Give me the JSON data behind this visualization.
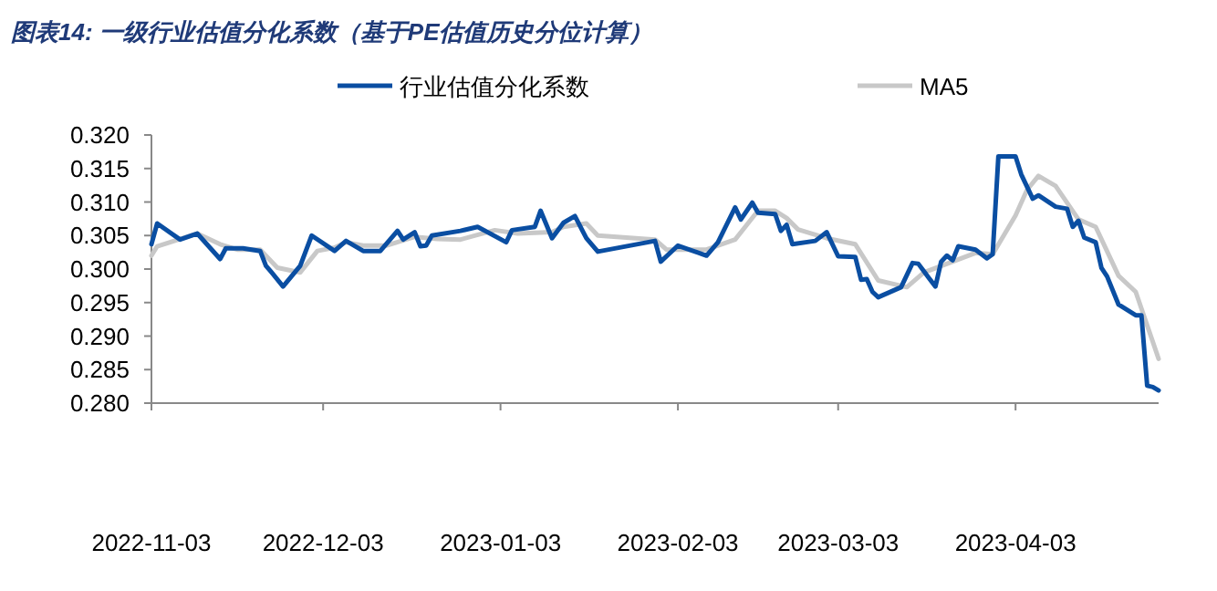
{
  "chart_data": {
    "type": "line",
    "title": "图表14: 一级行业估值分化系数（基于PE估值历史分位计算）",
    "xlim": [
      "2022-11-03",
      "2023-04-28"
    ],
    "xticks": [
      "2022-11-03",
      "2022-12-03",
      "2023-01-03",
      "2023-02-03",
      "2023-03-03",
      "2023-04-03"
    ],
    "ylim": [
      0.28,
      0.32
    ],
    "yticks": [
      {
        "value": 0.28,
        "label": "0.280"
      },
      {
        "value": 0.285,
        "label": "0.285"
      },
      {
        "value": 0.29,
        "label": "0.290"
      },
      {
        "value": 0.295,
        "label": "0.295"
      },
      {
        "value": 0.3,
        "label": "0.300"
      },
      {
        "value": 0.305,
        "label": "0.305"
      },
      {
        "value": 0.31,
        "label": "0.310"
      },
      {
        "value": 0.315,
        "label": "0.315"
      },
      {
        "value": 0.32,
        "label": "0.320"
      }
    ],
    "grid": false,
    "legend": "top",
    "line_style": "solid",
    "series": [
      {
        "name": "行业估值分化系数",
        "color": "#0a4ea2",
        "x": [
          "2022-11-03",
          "2022-11-04",
          "2022-11-08",
          "2022-11-11",
          "2022-11-15",
          "2022-11-16",
          "2022-11-19",
          "2022-11-22",
          "2022-11-23",
          "2022-11-24",
          "2022-11-26",
          "2022-11-29",
          "2022-12-01",
          "2022-12-05",
          "2022-12-07",
          "2022-12-10",
          "2022-12-13",
          "2022-12-16",
          "2022-12-17",
          "2022-12-19",
          "2022-12-20",
          "2022-12-21",
          "2022-12-22",
          "2022-12-27",
          "2022-12-30",
          "2023-01-04",
          "2023-01-05",
          "2023-01-09",
          "2023-01-10",
          "2023-01-12",
          "2023-01-14",
          "2023-01-16",
          "2023-01-18",
          "2023-01-20",
          "2023-01-30",
          "2023-01-31",
          "2023-02-03",
          "2023-02-08",
          "2023-02-10",
          "2023-02-13",
          "2023-02-14",
          "2023-02-16",
          "2023-02-17",
          "2023-02-20",
          "2023-02-21",
          "2023-02-22",
          "2023-02-23",
          "2023-02-27",
          "2023-03-01",
          "2023-03-03",
          "2023-03-06",
          "2023-03-07",
          "2023-03-08",
          "2023-03-09",
          "2023-03-10",
          "2023-03-14",
          "2023-03-16",
          "2023-03-17",
          "2023-03-19",
          "2023-03-20",
          "2023-03-21",
          "2023-03-22",
          "2023-03-23",
          "2023-03-24",
          "2023-03-27",
          "2023-03-29",
          "2023-03-30",
          "2023-03-31",
          "2023-04-03",
          "2023-04-04",
          "2023-04-06",
          "2023-04-07",
          "2023-04-10",
          "2023-04-12",
          "2023-04-13",
          "2023-04-14",
          "2023-04-15",
          "2023-04-17",
          "2023-04-18",
          "2023-04-19",
          "2023-04-21",
          "2023-04-24",
          "2023-04-25",
          "2023-04-26",
          "2023-04-27",
          "2023-04-28"
        ],
        "values": [
          0.3037,
          0.3068,
          0.3044,
          0.3053,
          0.3015,
          0.3031,
          0.3031,
          0.3027,
          0.3005,
          0.2995,
          0.2974,
          0.3005,
          0.305,
          0.3027,
          0.3042,
          0.3027,
          0.3027,
          0.3057,
          0.3044,
          0.3055,
          0.3034,
          0.3035,
          0.305,
          0.3057,
          0.3063,
          0.304,
          0.3058,
          0.3063,
          0.3087,
          0.3046,
          0.3069,
          0.3079,
          0.3046,
          0.3026,
          0.3042,
          0.3011,
          0.3035,
          0.302,
          0.304,
          0.3092,
          0.3074,
          0.3099,
          0.3084,
          0.3082,
          0.3057,
          0.3066,
          0.3037,
          0.3042,
          0.3055,
          0.3019,
          0.3018,
          0.2984,
          0.2985,
          0.2966,
          0.2958,
          0.2973,
          0.3009,
          0.3008,
          0.2985,
          0.2974,
          0.3011,
          0.302,
          0.3013,
          0.3034,
          0.3029,
          0.3016,
          0.3022,
          0.3168,
          0.3168,
          0.3141,
          0.3105,
          0.311,
          0.3093,
          0.309,
          0.3063,
          0.3072,
          0.3047,
          0.304,
          0.3002,
          0.2989,
          0.2947,
          0.2931,
          0.2931,
          0.2826,
          0.2824,
          0.2819
        ]
      },
      {
        "name": "MA5",
        "color": "#c8c8c8",
        "x": [
          "2022-11-03",
          "2022-11-04",
          "2022-11-11",
          "2022-11-15",
          "2022-11-18",
          "2022-11-22",
          "2022-11-25",
          "2022-11-29",
          "2022-12-02",
          "2022-12-05",
          "2022-12-07",
          "2022-12-10",
          "2022-12-14",
          "2022-12-19",
          "2022-12-23",
          "2022-12-27",
          "2023-01-02",
          "2023-01-06",
          "2023-01-12",
          "2023-01-14",
          "2023-01-18",
          "2023-01-20",
          "2023-01-30",
          "2023-02-01",
          "2023-02-08",
          "2023-02-13",
          "2023-02-17",
          "2023-02-20",
          "2023-02-22",
          "2023-02-24",
          "2023-03-01",
          "2023-03-06",
          "2023-03-10",
          "2023-03-15",
          "2023-03-18",
          "2023-03-27",
          "2023-03-30",
          "2023-04-03",
          "2023-04-05",
          "2023-04-07",
          "2023-04-10",
          "2023-04-14",
          "2023-04-17",
          "2023-04-21",
          "2023-04-24",
          "2023-04-28"
        ],
        "values": [
          0.302,
          0.3034,
          0.3053,
          0.3037,
          0.3029,
          0.3029,
          0.3002,
          0.2995,
          0.3027,
          0.3032,
          0.304,
          0.3035,
          0.3035,
          0.3048,
          0.3045,
          0.3044,
          0.3058,
          0.3053,
          0.3055,
          0.3063,
          0.3068,
          0.305,
          0.3044,
          0.3029,
          0.3029,
          0.3044,
          0.3087,
          0.3087,
          0.3076,
          0.3059,
          0.3046,
          0.3037,
          0.2983,
          0.2973,
          0.2995,
          0.3024,
          0.3022,
          0.308,
          0.3118,
          0.3139,
          0.3124,
          0.3074,
          0.3063,
          0.299,
          0.2966,
          0.2866
        ]
      }
    ]
  }
}
